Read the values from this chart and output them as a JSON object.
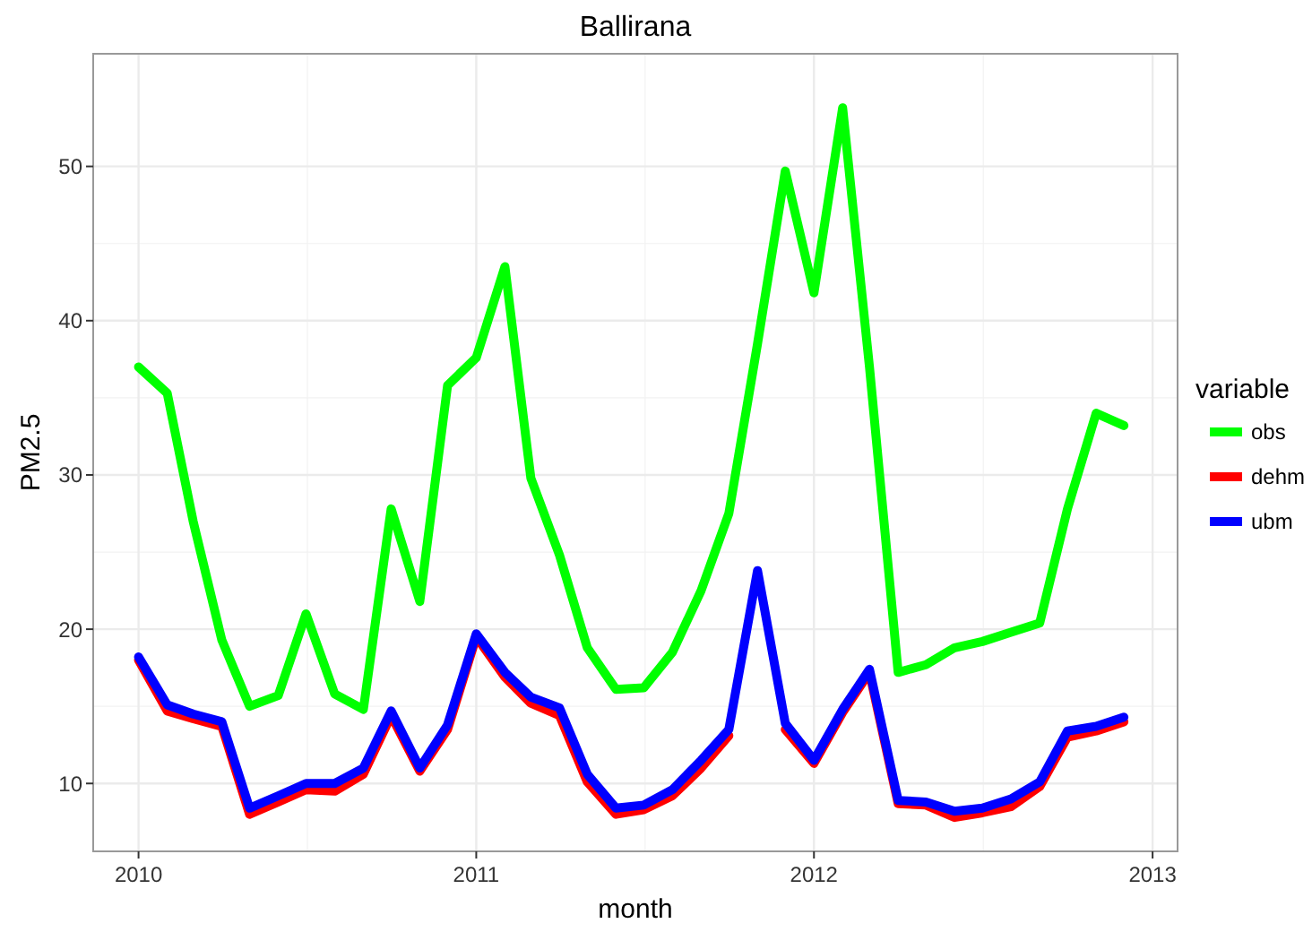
{
  "chart_data": {
    "type": "line",
    "title": "Ballirana",
    "xlabel": "month",
    "ylabel": "PM2.5",
    "legend_title": "variable",
    "legend": "right",
    "grid": true,
    "x": [
      "2010-01",
      "2010-02",
      "2010-03",
      "2010-04",
      "2010-05",
      "2010-06",
      "2010-07",
      "2010-08",
      "2010-09",
      "2010-10",
      "2010-11",
      "2010-12",
      "2011-01",
      "2011-02",
      "2011-03",
      "2011-04",
      "2011-05",
      "2011-06",
      "2011-07",
      "2011-08",
      "2011-09",
      "2011-10",
      "2011-11",
      "2011-12",
      "2012-01",
      "2012-02",
      "2012-03",
      "2012-04",
      "2012-05",
      "2012-06",
      "2012-07",
      "2012-08",
      "2012-09",
      "2012-10",
      "2012-11",
      "2012-12"
    ],
    "xlim": [
      "2009-11-13",
      "2013-01-28"
    ],
    "xticks": [
      {
        "value": "2010-01-01",
        "label": "2010"
      },
      {
        "value": "2011-01-01",
        "label": "2011"
      },
      {
        "value": "2012-01-01",
        "label": "2012"
      },
      {
        "value": "2013-01-01",
        "label": "2013"
      }
    ],
    "ylim": [
      5.6,
      57.3
    ],
    "yticks": [
      10,
      20,
      30,
      40,
      50
    ],
    "series": [
      {
        "name": "obs",
        "color": "#00ff00",
        "values": [
          37,
          35.3,
          27,
          19.3,
          15,
          15.7,
          21,
          15.8,
          14.8,
          27.8,
          21.8,
          35.8,
          37.6,
          43.5,
          29.8,
          24.8,
          18.8,
          16.1,
          16.2,
          18.5,
          22.5,
          27.5,
          38.5,
          49.7,
          41.8,
          53.8,
          37,
          17.2,
          17.7,
          18.8,
          19.2,
          19.8,
          20.4,
          27.8,
          34,
          33.2
        ]
      },
      {
        "name": "dehm",
        "color": "#ff0000",
        "values": [
          18,
          14.7,
          14.2,
          13.7,
          8,
          8.8,
          9.6,
          9.5,
          10.6,
          14.4,
          10.8,
          13.5,
          19.5,
          16.9,
          15.2,
          14.4,
          10.1,
          8,
          8.3,
          9.2,
          11,
          13.1,
          null,
          13.5,
          11.3,
          14.6,
          17.2,
          8.7,
          8.6,
          7.8,
          8.1,
          8.5,
          9.8,
          13,
          13.4,
          14
        ]
      },
      {
        "name": "ubm",
        "color": "#0000ff",
        "values": [
          18.2,
          15.1,
          14.5,
          14,
          8.4,
          9.2,
          10,
          10,
          11,
          14.7,
          11,
          13.8,
          19.7,
          17.2,
          15.6,
          14.9,
          10.6,
          8.4,
          8.6,
          9.6,
          11.5,
          13.5,
          23.8,
          13.9,
          11.5,
          14.8,
          17.4,
          8.9,
          8.8,
          8.2,
          8.4,
          9,
          10.1,
          13.4,
          13.7,
          14.3
        ]
      }
    ]
  }
}
